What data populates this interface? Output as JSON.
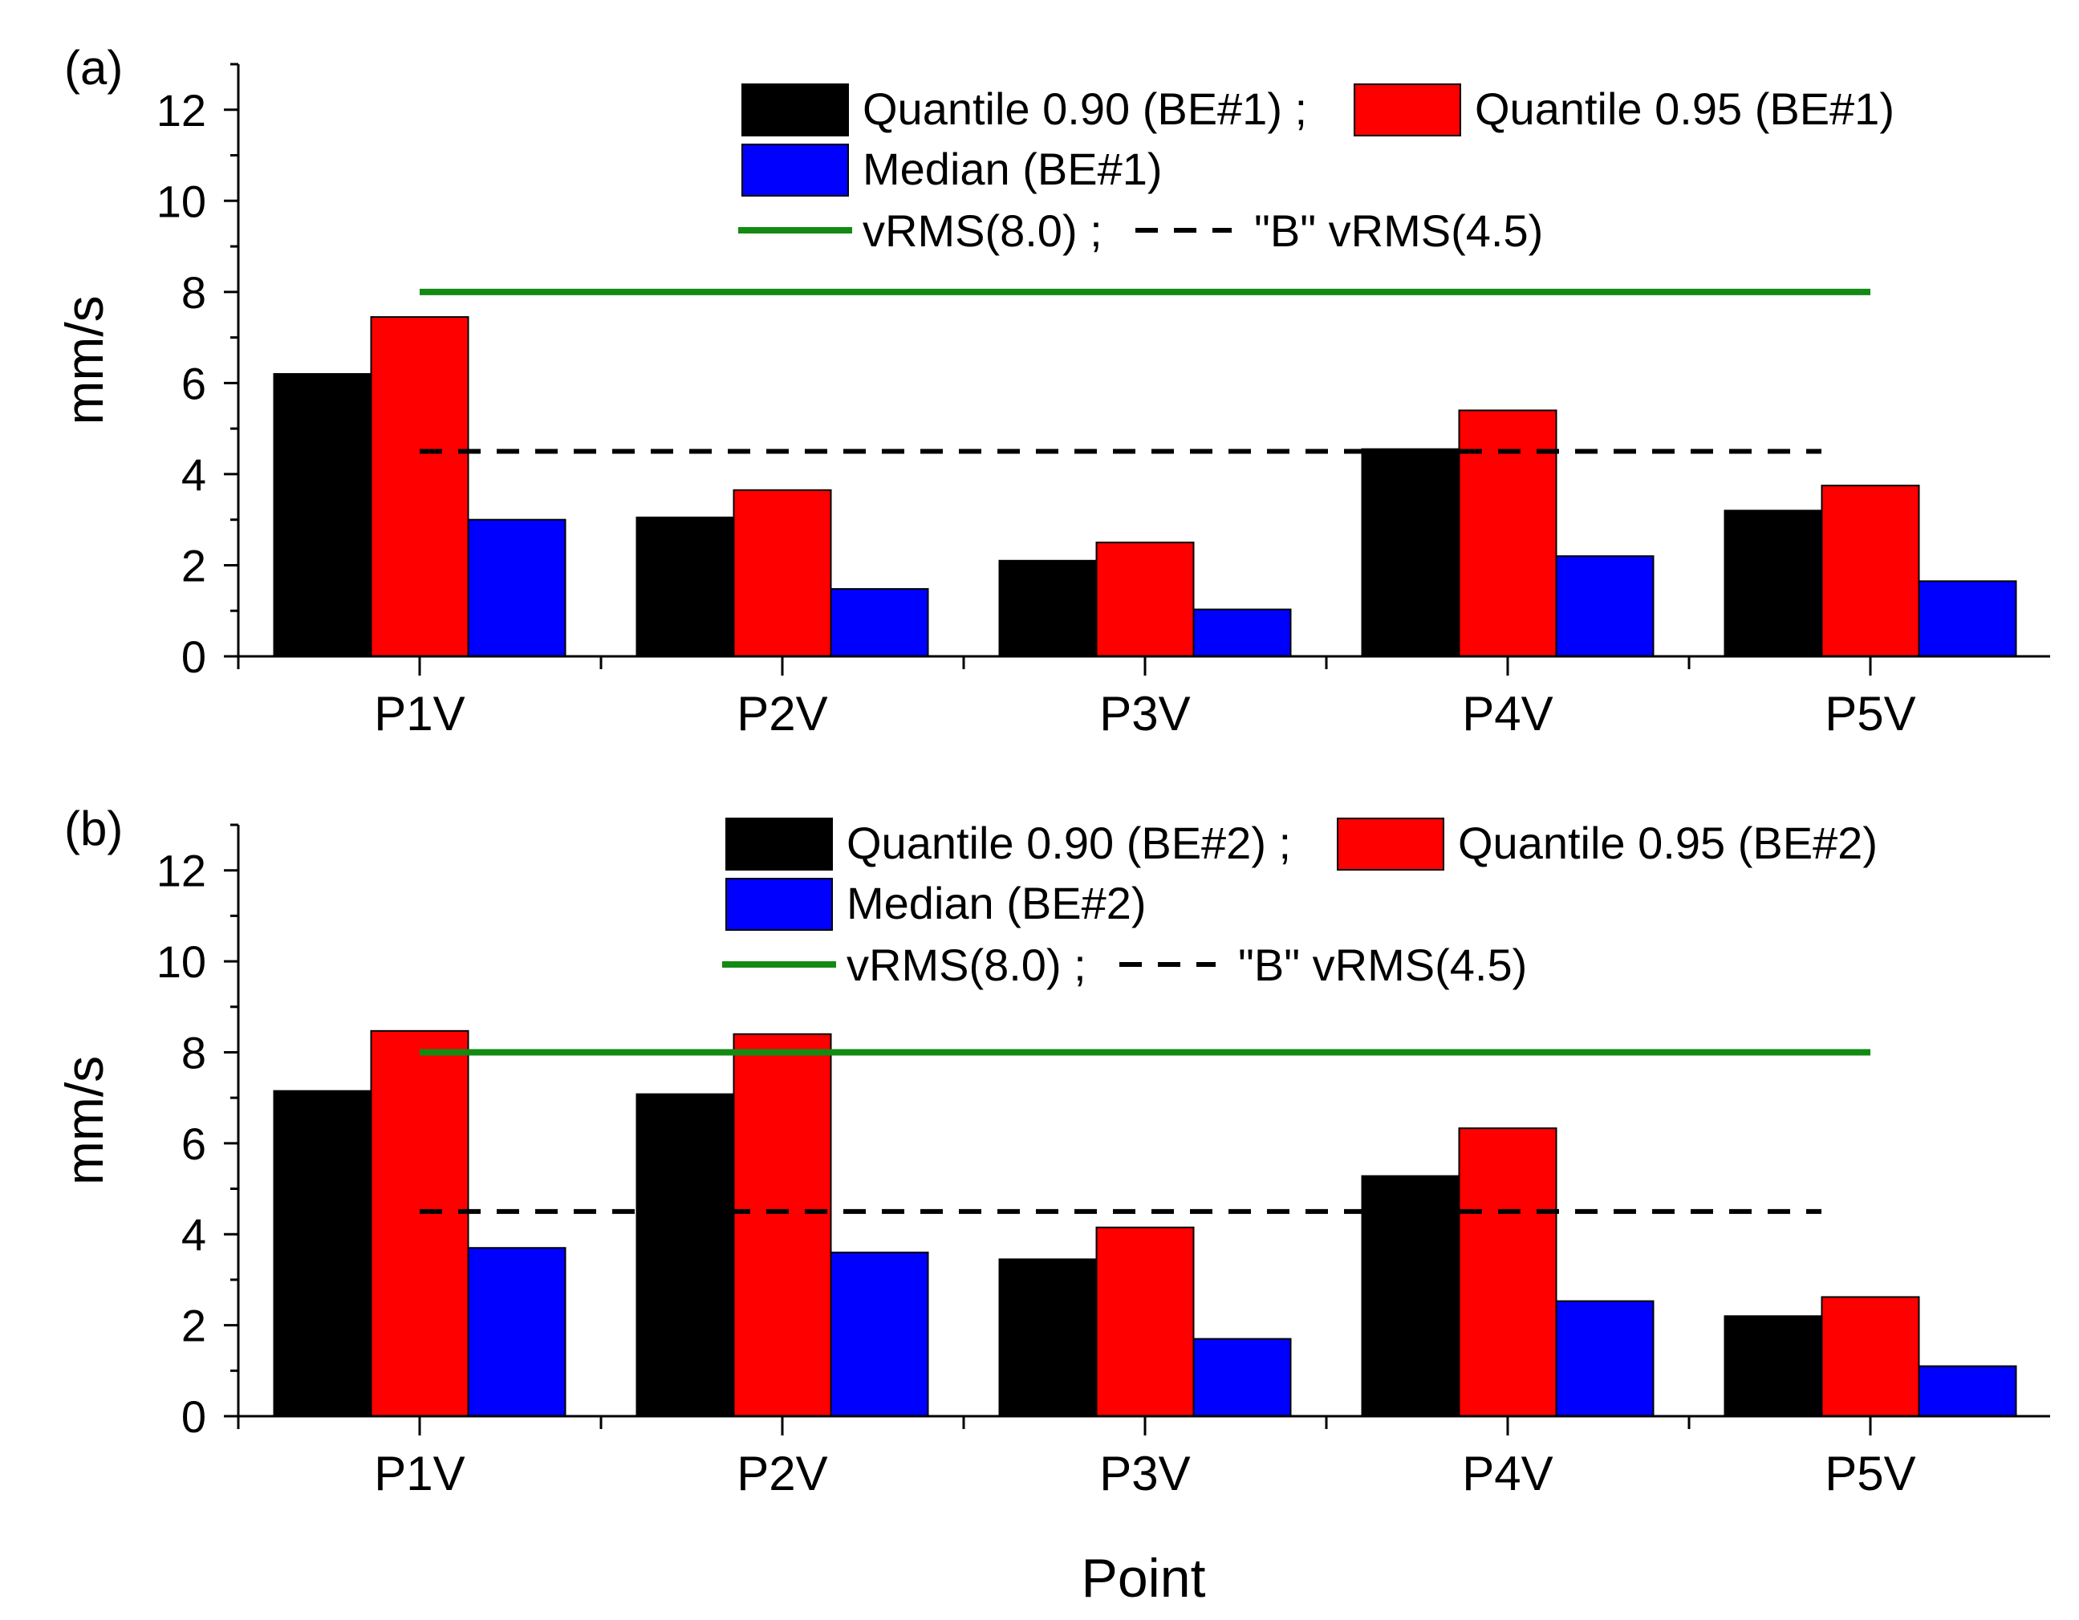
{
  "figure": {
    "xlabel": "Point",
    "colors": {
      "q90": "#000000",
      "q95": "#ff0000",
      "median": "#0000ff",
      "limit": "#138a13",
      "b_limit": "#000000"
    }
  },
  "chart_data": [
    {
      "type": "bar",
      "panel_label": "(a)",
      "ylabel": "mm/s",
      "ylim": [
        0,
        13
      ],
      "yticks": [
        "0",
        "2",
        "4",
        "6",
        "8",
        "10",
        "12"
      ],
      "categories": [
        "P1V",
        "P2V",
        "P3V",
        "P4V",
        "P5V"
      ],
      "series": [
        {
          "name": "Quantile 0.90 (BE#1)",
          "values": [
            6.2,
            3.05,
            2.1,
            4.55,
            3.2
          ]
        },
        {
          "name": "Quantile 0.95 (BE#1)",
          "values": [
            7.45,
            3.65,
            2.5,
            5.4,
            3.75
          ]
        },
        {
          "name": "Median (BE#1)",
          "values": [
            3.0,
            1.48,
            1.03,
            2.2,
            1.65
          ]
        }
      ],
      "reference_lines": [
        {
          "name": "vRMS(8.0)",
          "value": 8.0,
          "style": "solid"
        },
        {
          "name": "\"B\" vRMS(4.5)",
          "value": 4.5,
          "style": "dashed"
        }
      ],
      "legend": {
        "position": "top-right",
        "separator": ";"
      }
    },
    {
      "type": "bar",
      "panel_label": "(b)",
      "ylabel": "mm/s",
      "ylim": [
        0,
        13
      ],
      "yticks": [
        "0",
        "2",
        "4",
        "6",
        "8",
        "10",
        "12"
      ],
      "categories": [
        "P1V",
        "P2V",
        "P3V",
        "P4V",
        "P5V"
      ],
      "series": [
        {
          "name": "Quantile 0.90 (BE#2)",
          "values": [
            7.15,
            7.08,
            3.45,
            5.28,
            2.2
          ]
        },
        {
          "name": "Quantile 0.95 (BE#2)",
          "values": [
            8.47,
            8.4,
            4.15,
            6.33,
            2.62
          ]
        },
        {
          "name": "Median (BE#2)",
          "values": [
            3.7,
            3.6,
            1.7,
            2.53,
            1.1
          ]
        }
      ],
      "reference_lines": [
        {
          "name": "vRMS(8.0)",
          "value": 8.0,
          "style": "solid"
        },
        {
          "name": "\"B\" vRMS(4.5)",
          "value": 4.5,
          "style": "dashed"
        }
      ],
      "legend": {
        "position": "top-right",
        "separator": ";"
      }
    }
  ]
}
